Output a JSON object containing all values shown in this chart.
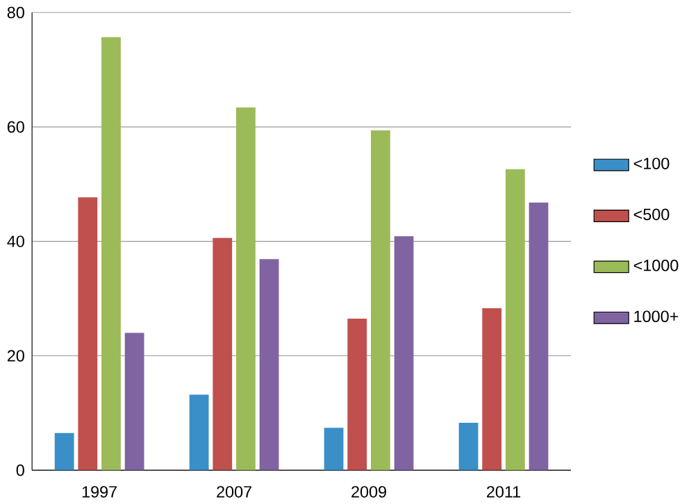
{
  "chart_data": {
    "type": "bar",
    "categories": [
      "1997",
      "2007",
      "2009",
      "2011"
    ],
    "series": [
      {
        "name": "<100",
        "color": "#3a8fc8",
        "values": [
          6.5,
          13.2,
          7.4,
          8.3
        ]
      },
      {
        "name": "<500",
        "color": "#c0504d",
        "values": [
          47.7,
          40.6,
          26.5,
          28.3
        ]
      },
      {
        "name": "<1000",
        "color": "#9bbb59",
        "values": [
          75.7,
          63.4,
          59.4,
          52.6
        ]
      },
      {
        "name": "1000+",
        "color": "#8064a2",
        "values": [
          24,
          36.9,
          40.9,
          46.8
        ]
      }
    ],
    "ylim": [
      0,
      80
    ],
    "yticks": [
      0,
      20,
      40,
      60,
      80
    ],
    "grid": "y",
    "legend": "right"
  }
}
